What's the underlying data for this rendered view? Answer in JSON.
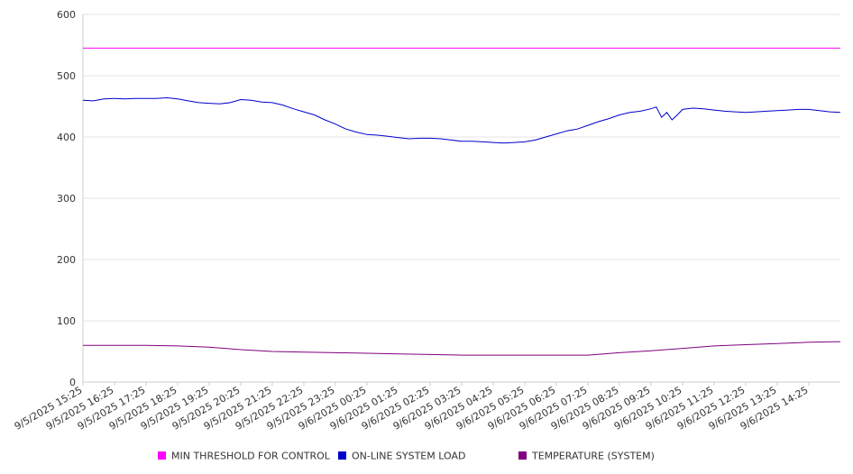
{
  "chart_data": {
    "type": "line",
    "title": "",
    "xlabel": "",
    "ylabel": "",
    "ylim": [
      0,
      600
    ],
    "y_ticks": [
      0,
      100,
      200,
      300,
      400,
      500,
      600
    ],
    "grid": true,
    "legend_position": "bottom",
    "x_tick_labels": [
      "9/5/2025 15:25",
      "9/5/2025 16:25",
      "9/5/2025 17:25",
      "9/5/2025 18:25",
      "9/5/2025 19:25",
      "9/5/2025 20:25",
      "9/5/2025 21:25",
      "9/5/2025 22:25",
      "9/5/2025 23:25",
      "9/6/2025 00:25",
      "9/6/2025 01:25",
      "9/6/2025 02:25",
      "9/6/2025 03:25",
      "9/6/2025 04:25",
      "9/6/2025 05:25",
      "9/6/2025 06:25",
      "9/6/2025 07:25",
      "9/6/2025 08:25",
      "9/6/2025 09:25",
      "9/6/2025 10:25",
      "9/6/2025 11:25",
      "9/6/2025 12:25",
      "9/6/2025 13:25",
      "9/6/2025 14:25"
    ],
    "x_end": "9/6/2025 15:25",
    "series": [
      {
        "name": "MIN THRESHOLD FOR CONTROL",
        "color": "#ff00ff",
        "points": [
          [
            "9/5/2025 15:25",
            545
          ],
          [
            "9/6/2025 15:25",
            545
          ]
        ]
      },
      {
        "name": "ON-LINE SYSTEM LOAD",
        "color": "#0000cc",
        "points": [
          [
            "9/5/2025 15:25",
            460
          ],
          [
            "9/5/2025 15:45",
            459
          ],
          [
            "9/5/2025 16:05",
            462
          ],
          [
            "9/5/2025 16:25",
            463
          ],
          [
            "9/5/2025 16:45",
            462
          ],
          [
            "9/5/2025 17:05",
            463
          ],
          [
            "9/5/2025 17:25",
            463
          ],
          [
            "9/5/2025 17:45",
            463
          ],
          [
            "9/5/2025 18:05",
            464
          ],
          [
            "9/5/2025 18:25",
            462
          ],
          [
            "9/5/2025 18:45",
            459
          ],
          [
            "9/5/2025 19:05",
            456
          ],
          [
            "9/5/2025 19:25",
            455
          ],
          [
            "9/5/2025 19:45",
            454
          ],
          [
            "9/5/2025 20:05",
            456
          ],
          [
            "9/5/2025 20:25",
            461
          ],
          [
            "9/5/2025 20:45",
            460
          ],
          [
            "9/5/2025 21:05",
            457
          ],
          [
            "9/5/2025 21:25",
            456
          ],
          [
            "9/5/2025 21:45",
            452
          ],
          [
            "9/5/2025 22:05",
            446
          ],
          [
            "9/5/2025 22:25",
            441
          ],
          [
            "9/5/2025 22:45",
            436
          ],
          [
            "9/5/2025 23:05",
            428
          ],
          [
            "9/5/2025 23:25",
            421
          ],
          [
            "9/5/2025 23:45",
            413
          ],
          [
            "9/6/2025 00:05",
            408
          ],
          [
            "9/6/2025 00:25",
            404
          ],
          [
            "9/6/2025 00:45",
            403
          ],
          [
            "9/6/2025 01:05",
            401
          ],
          [
            "9/6/2025 01:25",
            399
          ],
          [
            "9/6/2025 01:45",
            397
          ],
          [
            "9/6/2025 02:05",
            398
          ],
          [
            "9/6/2025 02:25",
            398
          ],
          [
            "9/6/2025 02:45",
            397
          ],
          [
            "9/6/2025 03:05",
            395
          ],
          [
            "9/6/2025 03:25",
            393
          ],
          [
            "9/6/2025 03:45",
            393
          ],
          [
            "9/6/2025 04:05",
            392
          ],
          [
            "9/6/2025 04:25",
            391
          ],
          [
            "9/6/2025 04:45",
            390
          ],
          [
            "9/6/2025 05:05",
            391
          ],
          [
            "9/6/2025 05:25",
            392
          ],
          [
            "9/6/2025 05:45",
            395
          ],
          [
            "9/6/2025 06:05",
            400
          ],
          [
            "9/6/2025 06:25",
            405
          ],
          [
            "9/6/2025 06:45",
            410
          ],
          [
            "9/6/2025 07:05",
            413
          ],
          [
            "9/6/2025 07:25",
            419
          ],
          [
            "9/6/2025 07:45",
            425
          ],
          [
            "9/6/2025 08:05",
            430
          ],
          [
            "9/6/2025 08:25",
            436
          ],
          [
            "9/6/2025 08:45",
            440
          ],
          [
            "9/6/2025 09:05",
            442
          ],
          [
            "9/6/2025 09:25",
            446
          ],
          [
            "9/6/2025 09:35",
            449
          ],
          [
            "9/6/2025 09:45",
            432
          ],
          [
            "9/6/2025 09:55",
            440
          ],
          [
            "9/6/2025 10:05",
            428
          ],
          [
            "9/6/2025 10:15",
            436
          ],
          [
            "9/6/2025 10:25",
            445
          ],
          [
            "9/6/2025 10:45",
            447
          ],
          [
            "9/6/2025 11:05",
            446
          ],
          [
            "9/6/2025 11:25",
            444
          ],
          [
            "9/6/2025 11:45",
            442
          ],
          [
            "9/6/2025 12:05",
            441
          ],
          [
            "9/6/2025 12:25",
            440
          ],
          [
            "9/6/2025 12:45",
            441
          ],
          [
            "9/6/2025 13:05",
            442
          ],
          [
            "9/6/2025 13:25",
            443
          ],
          [
            "9/6/2025 13:45",
            444
          ],
          [
            "9/6/2025 14:05",
            445
          ],
          [
            "9/6/2025 14:25",
            445
          ],
          [
            "9/6/2025 14:45",
            443
          ],
          [
            "9/6/2025 15:05",
            441
          ],
          [
            "9/6/2025 15:25",
            440
          ]
        ]
      },
      {
        "name": "TEMPERATURE (SYSTEM)",
        "color": "#800080",
        "points": [
          [
            "9/5/2025 15:25",
            60
          ],
          [
            "9/5/2025 16:25",
            60
          ],
          [
            "9/5/2025 17:25",
            60
          ],
          [
            "9/5/2025 18:25",
            59
          ],
          [
            "9/5/2025 19:25",
            57
          ],
          [
            "9/5/2025 20:25",
            53
          ],
          [
            "9/5/2025 21:25",
            50
          ],
          [
            "9/5/2025 22:25",
            49
          ],
          [
            "9/5/2025 23:25",
            48
          ],
          [
            "9/6/2025 00:25",
            47
          ],
          [
            "9/6/2025 01:25",
            46
          ],
          [
            "9/6/2025 02:25",
            45
          ],
          [
            "9/6/2025 03:25",
            44
          ],
          [
            "9/6/2025 04:25",
            44
          ],
          [
            "9/6/2025 05:25",
            44
          ],
          [
            "9/6/2025 06:25",
            44
          ],
          [
            "9/6/2025 07:25",
            44
          ],
          [
            "9/6/2025 08:25",
            48
          ],
          [
            "9/6/2025 09:25",
            51
          ],
          [
            "9/6/2025 10:25",
            55
          ],
          [
            "9/6/2025 11:25",
            59
          ],
          [
            "9/6/2025 12:25",
            61
          ],
          [
            "9/6/2025 13:25",
            63
          ],
          [
            "9/6/2025 14:25",
            65
          ],
          [
            "9/6/2025 15:25",
            66
          ]
        ]
      }
    ]
  }
}
